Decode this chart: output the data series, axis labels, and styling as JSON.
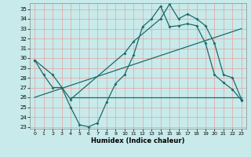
{
  "xlabel": "Humidex (Indice chaleur)",
  "bg_color": "#c8eaea",
  "line_color": "#1a6b6b",
  "grid_color_v": "#e8a0a0",
  "grid_color_h": "#e8a0a0",
  "xlim": [
    -0.5,
    23.5
  ],
  "ylim": [
    22.8,
    35.6
  ],
  "yticks": [
    23,
    24,
    25,
    26,
    27,
    28,
    29,
    30,
    31,
    32,
    33,
    34,
    35
  ],
  "xticks": [
    0,
    1,
    2,
    3,
    4,
    5,
    6,
    7,
    8,
    9,
    10,
    11,
    12,
    13,
    14,
    15,
    16,
    17,
    18,
    19,
    20,
    21,
    22,
    23
  ],
  "line1_x": [
    0,
    1,
    2,
    3,
    4,
    5,
    6,
    7,
    8,
    9,
    10,
    11,
    12,
    13,
    14,
    15,
    16,
    17,
    18,
    19,
    20,
    21,
    22,
    23
  ],
  "line1_y": [
    29.8,
    28.3,
    27.0,
    27.0,
    25.0,
    23.2,
    23.0,
    23.4,
    25.5,
    27.4,
    28.3,
    30.3,
    33.2,
    34.0,
    35.3,
    33.2,
    33.3,
    33.5,
    33.3,
    31.5,
    28.3,
    27.5,
    26.8,
    25.7
  ],
  "line2_x": [
    0,
    23
  ],
  "line2_y": [
    26.0,
    33.0
  ],
  "line3_x": [
    0,
    2,
    4,
    10,
    11,
    14,
    15,
    16,
    17,
    18,
    19,
    20,
    21,
    22,
    23
  ],
  "line3_y": [
    29.8,
    28.3,
    25.8,
    30.5,
    31.7,
    34.0,
    35.5,
    34.0,
    34.5,
    34.0,
    33.3,
    31.5,
    28.3,
    28.0,
    25.8
  ]
}
